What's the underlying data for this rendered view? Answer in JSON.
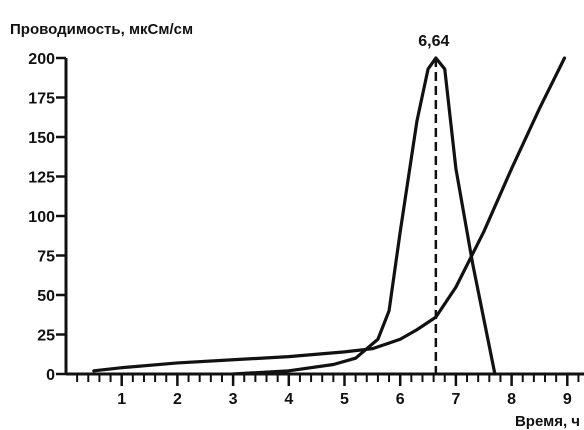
{
  "chart_data": {
    "type": "line",
    "ylabel": "Проводимость, мкСм/см",
    "xlabel": "Время, ч",
    "xlim": [
      0,
      9.5
    ],
    "ylim": [
      0,
      200
    ],
    "x_ticks": [
      "1",
      "2",
      "3",
      "4",
      "5",
      "6",
      "7",
      "8",
      "9"
    ],
    "y_ticks": [
      "0",
      "25",
      "50",
      "75",
      "100",
      "125",
      "150",
      "175",
      "200"
    ],
    "grid": false,
    "legend": "none",
    "annotation": {
      "text": "6,64",
      "x": 6.64,
      "y": 200
    },
    "series": [
      {
        "x": [
          0.5,
          1,
          2,
          3,
          4,
          5,
          5.5,
          6,
          6.3,
          6.64,
          7.0,
          7.5,
          8.0,
          8.5,
          8.95
        ],
        "y": [
          2,
          4,
          7,
          9,
          11,
          14,
          16,
          22,
          28,
          36,
          55,
          90,
          130,
          168,
          200
        ]
      },
      {
        "x": [
          3.0,
          4.0,
          4.8,
          5.2,
          5.6,
          5.8,
          6.0,
          6.3,
          6.5,
          6.64,
          6.8,
          7.0,
          7.3,
          7.7
        ],
        "y": [
          0,
          2,
          6,
          10,
          22,
          40,
          90,
          160,
          193,
          200,
          193,
          130,
          70,
          0
        ]
      }
    ],
    "markers": [
      {
        "x": 6.64,
        "style": "dashed"
      }
    ]
  }
}
